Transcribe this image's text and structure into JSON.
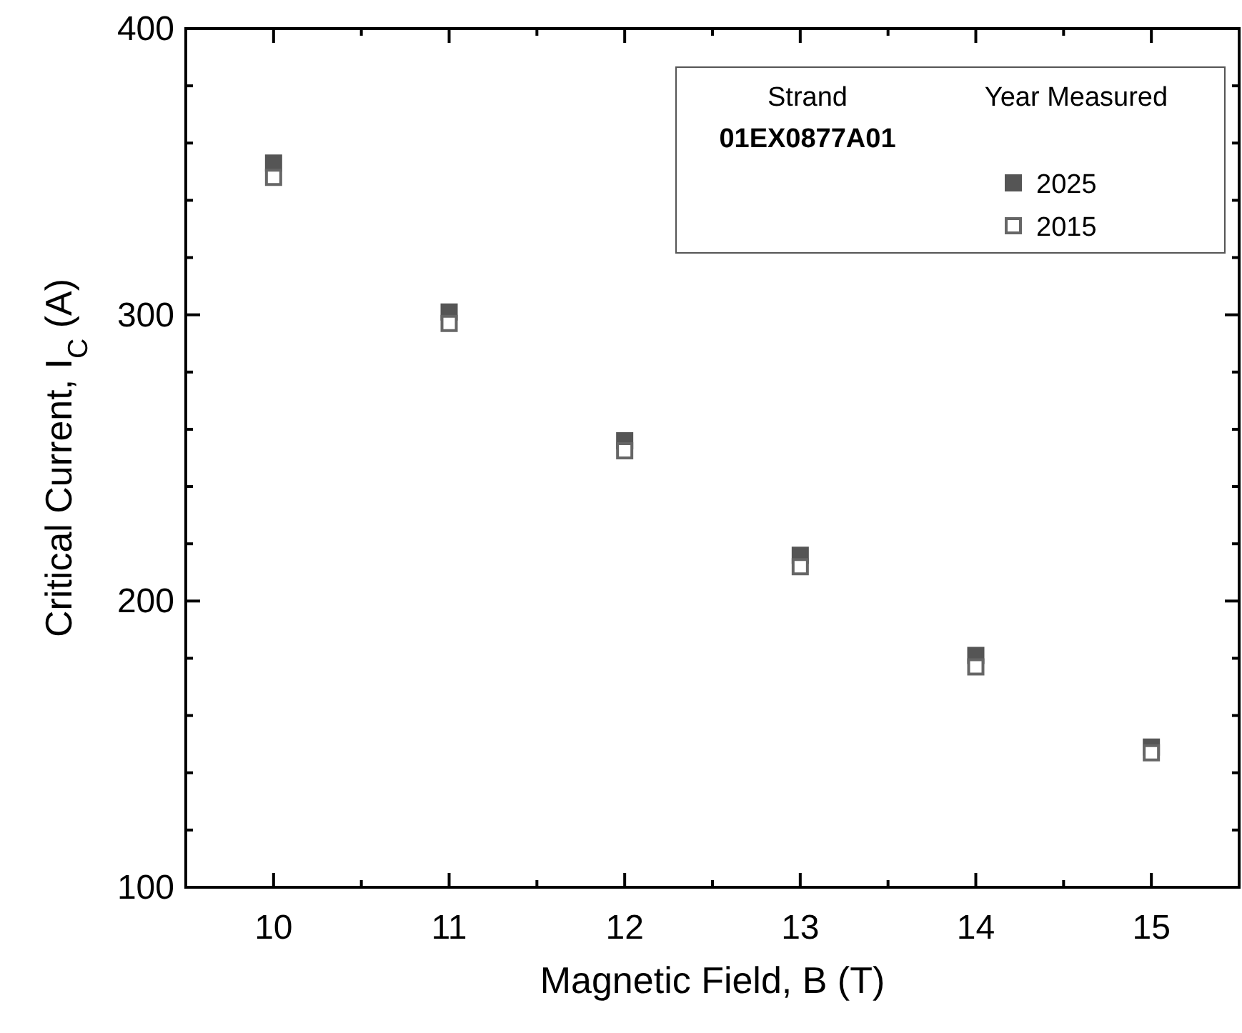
{
  "chart_data": {
    "type": "scatter",
    "xlabel": "Magnetic Field, B (T)",
    "ylabel": "Critical Current, I$_{C}$ (A)",
    "legend_title": "Strand",
    "annotations": [
      "Year Measured",
      "01EX0877A01"
    ],
    "x": [
      10,
      11,
      12,
      13,
      14,
      15
    ],
    "series": [
      {
        "name": "2025",
        "color": "#555555",
        "values": [
          353,
          301,
          256,
          216,
          181,
          149
        ]
      },
      {
        "name": "2015",
        "color": "#666666",
        "values": [
          348,
          297,
          252.5,
          212,
          177,
          147
        ]
      }
    ],
    "xlim": [
      9.5,
      15.5
    ],
    "xticks": [
      10,
      {
        "value": 10.5,
        "label": null
      },
      11,
      {
        "value": 11.5,
        "label": null
      },
      12,
      {
        "value": 12.5,
        "label": null
      },
      13,
      {
        "value": 13.5,
        "label": null
      },
      14,
      {
        "value": 14.5,
        "label": null
      },
      15
    ],
    "ylim": [
      100,
      400
    ],
    "yticks": [
      100,
      {
        "value": 120,
        "label": null
      },
      {
        "value": 140,
        "label": null
      },
      {
        "value": 160,
        "label": null
      },
      {
        "value": 180,
        "label": null
      },
      200,
      {
        "value": 220,
        "label": null
      },
      {
        "value": 240,
        "label": null
      },
      {
        "value": 260,
        "label": null
      },
      {
        "value": 280,
        "label": null
      },
      300,
      {
        "value": 320,
        "label": null
      },
      {
        "value": 340,
        "label": null
      },
      {
        "value": 360,
        "label": null
      },
      {
        "value": 380,
        "label": null
      },
      400
    ],
    "marker": "square",
    "legend": "top right",
    "grid": false
  }
}
